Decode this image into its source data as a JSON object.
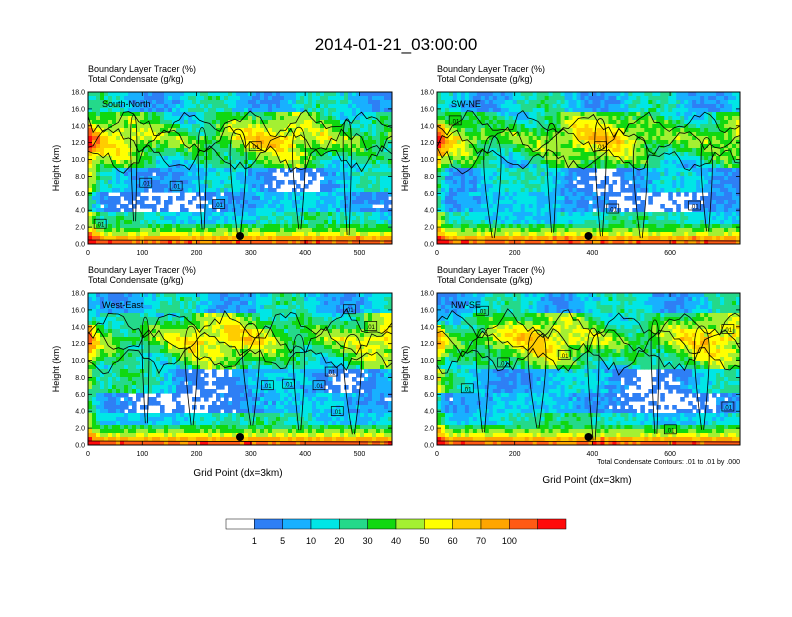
{
  "title": "2014-01-21_03:00:00",
  "colors": {
    "levels": [
      "#ffffff",
      "#2e7ff5",
      "#18b0ff",
      "#00e6e6",
      "#24d98a",
      "#10d810",
      "#a4f032",
      "#ffff00",
      "#ffcc00",
      "#ffa500",
      "#ff5a14",
      "#ff0a0a"
    ],
    "contour": "#000000",
    "marker": "#000000"
  },
  "chart_data": {
    "type": "heatmap",
    "variable_1": "Boundary Layer Tracer",
    "unit_1": "(%)",
    "variable_2": "Total Condensate",
    "unit_2": "(g/kg)",
    "ylabel": "Height (km)",
    "xlabel": "Grid Point (dx=3km)",
    "ylim": [
      0,
      18
    ],
    "ytick_labels": [
      "0.0",
      "2.0",
      "4.0",
      "6.0",
      "8.0",
      "10.0",
      "12.0",
      "14.0",
      "16.0",
      "18.0"
    ],
    "contour_note": "Total Condensate Contours: .01 to .01 by .000",
    "contour_label": ".01",
    "colorbar_labels": [
      "1",
      "5",
      "10",
      "20",
      "30",
      "40",
      "50",
      "60",
      "70",
      "100"
    ],
    "panels": [
      {
        "name": "South-North",
        "xlim": [
          0,
          560
        ],
        "xticks": [
          "0",
          "100",
          "200",
          "300",
          "400",
          "500"
        ],
        "marker_x": 280
      },
      {
        "name": "SW-NE",
        "xlim": [
          0,
          780
        ],
        "xticks": [
          "0",
          "200",
          "400",
          "600"
        ],
        "marker_x": 390
      },
      {
        "name": "West-East",
        "xlim": [
          0,
          560
        ],
        "xticks": [
          "0",
          "100",
          "200",
          "300",
          "400",
          "500"
        ],
        "marker_x": 280
      },
      {
        "name": "NW-SE",
        "xlim": [
          0,
          780
        ],
        "xticks": [
          "0",
          "200",
          "400",
          "600"
        ],
        "marker_x": 390
      }
    ]
  }
}
